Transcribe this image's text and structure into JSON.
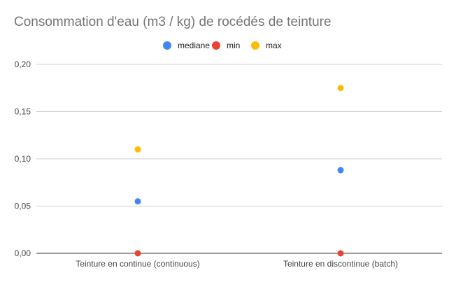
{
  "chart_data": {
    "type": "scatter",
    "title": "Consommation d'eau (m3 / kg) de rocédés de teinture",
    "xlabel": "",
    "ylabel": "",
    "categories": [
      "Teinture en continue (continuous)",
      "Teinture en discontinue (batch)"
    ],
    "y_ticks": [
      "0,00",
      "0,05",
      "0,10",
      "0,15",
      "0,20"
    ],
    "ylim": [
      0,
      0.2
    ],
    "grid": true,
    "legend_position": "top",
    "series": [
      {
        "name": "mediane",
        "color": "#4285f4",
        "values": [
          0.055,
          0.088
        ]
      },
      {
        "name": "min",
        "color": "#ea4335",
        "values": [
          0,
          0
        ]
      },
      {
        "name": "max",
        "color": "#fbbc04",
        "values": [
          0.11,
          0.175
        ]
      }
    ]
  }
}
